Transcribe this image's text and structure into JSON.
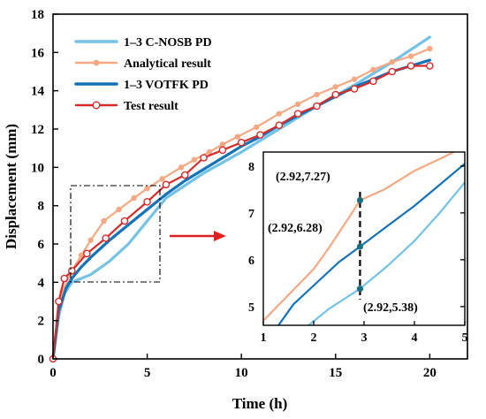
{
  "chart_data": [
    {
      "type": "line",
      "xlabel": "Time (h)",
      "ylabel": "Displacement (mm)",
      "xlim": [
        0,
        22
      ],
      "ylim": [
        0,
        18
      ],
      "xticks": [
        0,
        5,
        10,
        15,
        20
      ],
      "yticks": [
        0,
        2,
        4,
        6,
        8,
        10,
        12,
        14,
        16,
        18
      ],
      "grid": false,
      "legend_position": "top-left",
      "series": [
        {
          "name": "1–3 C-NOSB PD",
          "color": "#74c2e8",
          "marker": "none",
          "x": [
            0,
            0.3,
            0.6,
            1.0,
            2.0,
            3.0,
            4.0,
            5.0,
            6.0,
            8.0,
            10.0,
            12.0,
            14.0,
            16.0,
            18.0,
            20.0
          ],
          "y": [
            0,
            2.2,
            3.4,
            4.0,
            4.4,
            5.1,
            6.0,
            7.2,
            8.4,
            9.7,
            10.8,
            12.0,
            13.2,
            14.3,
            15.5,
            16.8
          ]
        },
        {
          "name": "Analytical result",
          "color": "#f5a882",
          "marker": "circle-filled",
          "x": [
            0,
            0.5,
            1.0,
            1.5,
            2.0,
            2.7,
            3.5,
            4.3,
            5.0,
            5.8,
            6.8,
            7.5,
            8.3,
            9.0,
            9.8,
            10.8,
            12.0,
            13.0,
            14.0,
            15.0,
            16.0,
            17.0,
            18.0,
            19.0,
            20.0
          ],
          "y": [
            0,
            3.5,
            4.6,
            5.4,
            6.2,
            7.2,
            7.8,
            8.4,
            8.9,
            9.4,
            10.0,
            10.4,
            10.8,
            11.2,
            11.6,
            12.1,
            12.8,
            13.3,
            13.8,
            14.2,
            14.6,
            15.1,
            15.5,
            15.8,
            16.2
          ]
        },
        {
          "name": "1–3 VOTFK PD",
          "color": "#1472b8",
          "marker": "none",
          "x": [
            0,
            0.3,
            0.7,
            1.0,
            1.5,
            2.0,
            3.0,
            4.0,
            5.0,
            6.0,
            7.0,
            8.0,
            9.0,
            10.0,
            11.0,
            12.0,
            13.0,
            14.0,
            15.0,
            16.0,
            17.0,
            18.0,
            19.0,
            20.0
          ],
          "y": [
            0,
            2.5,
            3.7,
            4.2,
            4.8,
            5.3,
            6.2,
            7.0,
            7.8,
            8.6,
            9.3,
            9.9,
            10.5,
            11.1,
            11.6,
            12.2,
            12.7,
            13.2,
            13.7,
            14.2,
            14.6,
            15.0,
            15.3,
            15.6
          ]
        },
        {
          "name": "Test result",
          "color": "#d92a2a",
          "marker": "circle-open",
          "x": [
            0,
            0.3,
            0.6,
            1.0,
            1.8,
            2.8,
            3.8,
            5.0,
            6.0,
            7.0,
            8.0,
            9.0,
            10.0,
            11.0,
            12.0,
            13.0,
            14.0,
            15.0,
            16.0,
            17.0,
            18.0,
            19.0,
            20.0
          ],
          "y": [
            0,
            3.0,
            4.2,
            4.6,
            5.5,
            6.3,
            7.2,
            8.2,
            9.1,
            9.6,
            10.5,
            10.9,
            11.3,
            11.7,
            12.2,
            12.8,
            13.2,
            13.8,
            14.1,
            14.5,
            15.0,
            15.3,
            15.3
          ]
        }
      ]
    },
    {
      "type": "line",
      "xlim": [
        1,
        5
      ],
      "ylim": [
        4.6,
        8.3
      ],
      "xticks": [
        1,
        2,
        3,
        4,
        5
      ],
      "yticks": [
        5,
        6,
        7,
        8
      ],
      "grid": false,
      "series": [
        {
          "color": "#74c2e8",
          "x": [
            1.9,
            2.3,
            2.92,
            3.5,
            4.0,
            4.5,
            5.0
          ],
          "y": [
            4.6,
            4.95,
            5.38,
            5.9,
            6.4,
            7.0,
            7.65
          ]
        },
        {
          "color": "#f5a882",
          "x": [
            1.0,
            1.5,
            2.0,
            2.3,
            2.7,
            2.92,
            3.4,
            4.0,
            4.5,
            4.78
          ],
          "y": [
            4.7,
            5.25,
            5.8,
            6.25,
            6.9,
            7.27,
            7.5,
            7.9,
            8.15,
            8.3
          ]
        },
        {
          "color": "#1472b8",
          "x": [
            1.3,
            1.6,
            2.0,
            2.5,
            2.92,
            3.5,
            4.0,
            4.5,
            5.0
          ],
          "y": [
            4.6,
            5.05,
            5.45,
            5.95,
            6.28,
            6.75,
            7.15,
            7.6,
            8.05
          ]
        }
      ],
      "marker_line_x": 2.92,
      "marker_points": [
        5.38,
        6.28,
        7.27
      ],
      "annotations": [
        "(2.92,7.27)",
        "(2.92,6.28)",
        "(2.92,5.38)"
      ]
    }
  ]
}
